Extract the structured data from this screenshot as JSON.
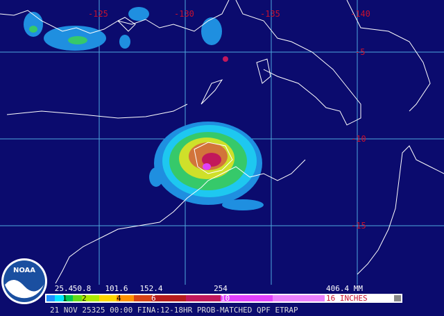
{
  "grid": {
    "lon_labels": [
      "-125",
      "-130",
      "-135",
      "-140"
    ],
    "lat_labels": [
      "-5",
      "-10",
      "-15"
    ]
  },
  "legend": {
    "mm_labels": [
      "25.4",
      "50.8",
      "101.6",
      "152.4",
      "254",
      "406.4 MM"
    ],
    "inch_labels": [
      "1",
      "2",
      "4",
      "6",
      "10",
      "16 INCHES"
    ]
  },
  "logo": "NOAA",
  "footer": "21 NOV 25325 00:00 FINA:12-18HR PROB-MATCHED QPF ETRAP"
}
